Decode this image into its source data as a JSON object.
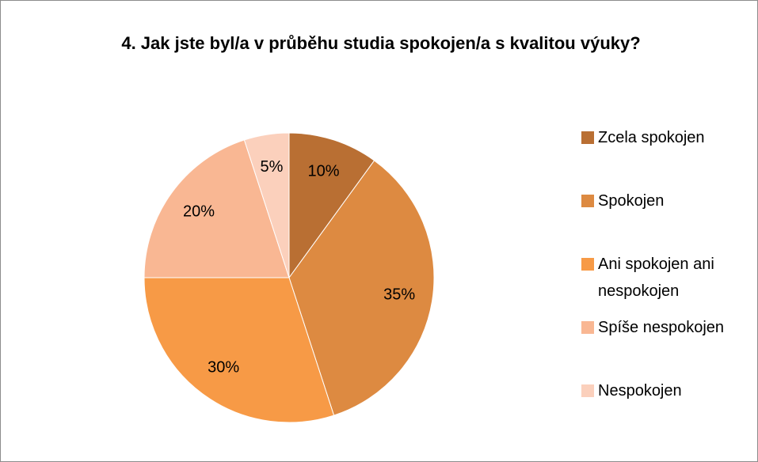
{
  "chart_data": {
    "type": "pie",
    "title": "4. Jak jste byl/a v průběhu studia spokojen/a s kvalitou výuky?",
    "categories": [
      "Zcela spokojen",
      "Spokojen",
      "Ani spokojen ani nespokojen",
      "Spíše nespokojen",
      "Nespokojen"
    ],
    "values": [
      10,
      35,
      30,
      20,
      5
    ],
    "value_labels": [
      "10%",
      "35%",
      "30%",
      "20%",
      "5%"
    ],
    "colors": [
      "#b96f33",
      "#dd8a41",
      "#f79a46",
      "#f9b793",
      "#fbd0bc"
    ],
    "legend": "right"
  }
}
